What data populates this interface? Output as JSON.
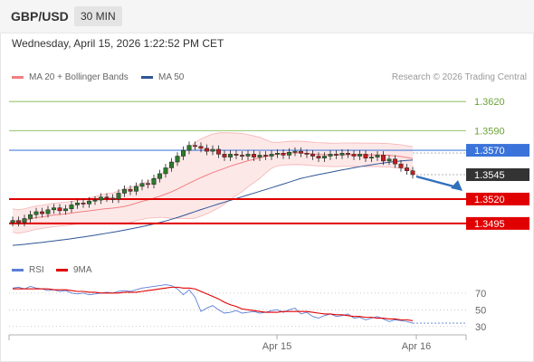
{
  "header": {
    "symbol": "GBP/USD",
    "timeframe": "30 MIN"
  },
  "datetime": "Wednesday, April 15, 2026 1:22:52 PM CET",
  "legend": {
    "bollinger": {
      "label": "MA 20 + Bollinger Bands",
      "color": "#f08080"
    },
    "ma50": {
      "label": "MA 50",
      "color": "#2f5597"
    }
  },
  "attribution": "Research © 2026 Trading Central",
  "rsi_legend": {
    "rsi": {
      "label": "RSI",
      "color": "#5b7fd6"
    },
    "ma9": {
      "label": "9MA",
      "color": "#e00000"
    }
  },
  "chart_data": [
    {
      "type": "candlestick",
      "title": "",
      "ylim": [
        1.3455,
        1.3635
      ],
      "x_ticks": [
        "Apr 15",
        "Apr 16"
      ],
      "levels": [
        {
          "value": 1.362,
          "label": "1.3620",
          "style": "green-thin"
        },
        {
          "value": 1.359,
          "label": "1.3590",
          "style": "green-thin"
        },
        {
          "value": 1.357,
          "label": "1.3570",
          "style": "blue-resistance"
        },
        {
          "value": 1.3545,
          "label": "1.3545",
          "style": "current-price"
        },
        {
          "value": 1.352,
          "label": "1.3520",
          "style": "red-support"
        },
        {
          "value": 1.3495,
          "label": "1.3495",
          "style": "red-support"
        }
      ],
      "close": [
        1.3498,
        1.3496,
        1.35,
        1.3504,
        1.3507,
        1.3505,
        1.3509,
        1.3511,
        1.3508,
        1.351,
        1.3514,
        1.3516,
        1.3515,
        1.3518,
        1.3519,
        1.3522,
        1.3521,
        1.352,
        1.3526,
        1.353,
        1.3528,
        1.3533,
        1.3536,
        1.3535,
        1.3541,
        1.3546,
        1.3552,
        1.3558,
        1.3564,
        1.357,
        1.3575,
        1.3574,
        1.3572,
        1.3569,
        1.3571,
        1.3566,
        1.3563,
        1.3566,
        1.3565,
        1.3564,
        1.3566,
        1.3563,
        1.3565,
        1.3564,
        1.3566,
        1.3567,
        1.3565,
        1.3568,
        1.3569,
        1.3567,
        1.3566,
        1.3564,
        1.3562,
        1.3564,
        1.3566,
        1.3565,
        1.3567,
        1.3566,
        1.3564,
        1.3566,
        1.3562,
        1.3563,
        1.3565,
        1.3559,
        1.3561,
        1.3556,
        1.3552,
        1.3549,
        1.3545
      ]
    },
    {
      "type": "line",
      "title": "RSI",
      "ylim": [
        20,
        85
      ],
      "y_ticks": [
        70,
        50,
        30
      ],
      "series": [
        {
          "name": "RSI",
          "values": [
            76,
            77,
            75,
            78,
            76,
            75,
            73,
            74,
            72,
            73,
            70,
            69,
            70,
            68,
            69,
            70,
            71,
            70,
            72,
            73,
            72,
            74,
            76,
            77,
            78,
            79,
            80,
            79,
            75,
            68,
            74,
            65,
            48,
            52,
            55,
            50,
            46,
            47,
            49,
            46,
            47,
            48,
            46,
            47,
            49,
            50,
            47,
            50,
            52,
            45,
            47,
            42,
            40,
            43,
            45,
            42,
            43,
            45,
            40,
            41,
            38,
            40,
            42,
            39,
            36,
            38,
            37,
            36,
            34
          ]
        },
        {
          "name": "9MA",
          "values": [
            75,
            75,
            75,
            75,
            75,
            75,
            75,
            74,
            74,
            74,
            73,
            72,
            72,
            71,
            71,
            70,
            70,
            70,
            70,
            71,
            71,
            71,
            72,
            73,
            74,
            75,
            76,
            77,
            77,
            76,
            76,
            75,
            72,
            69,
            66,
            63,
            59,
            56,
            54,
            51,
            50,
            49,
            48,
            47,
            47,
            47,
            48,
            48,
            48,
            48,
            48,
            47,
            46,
            45,
            45,
            44,
            44,
            43,
            42,
            42,
            41,
            41,
            40,
            40,
            39,
            39,
            38,
            38,
            37
          ]
        }
      ]
    }
  ]
}
